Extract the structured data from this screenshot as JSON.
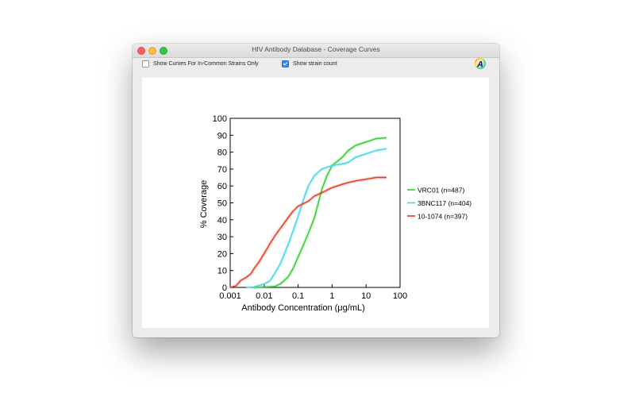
{
  "window": {
    "title": "HIV Antibody Database - Coverage Curves"
  },
  "toolbar": {
    "common_strains_label": "Show Curves For In-Common Strains Only",
    "common_strains_checked": false,
    "strain_count_label": "Show strain count",
    "strain_count_checked": true,
    "logo_text": "A"
  },
  "chart_data": {
    "type": "line",
    "xlabel": "Antibody Concentration (μg/mL)",
    "ylabel": "% Coverage",
    "xscale": "log",
    "xlim": [
      0.001,
      100
    ],
    "ylim": [
      0,
      100
    ],
    "x_ticks": [
      "0.001",
      "0.01",
      "0.1",
      "1",
      "10",
      "100"
    ],
    "y_ticks": [
      "0",
      "10",
      "20",
      "30",
      "40",
      "50",
      "60",
      "70",
      "80",
      "90",
      "100"
    ],
    "grid": false,
    "legend_position": "right",
    "series": [
      {
        "name": "VRC01 (n=487)",
        "color": "#2ecc2e",
        "points": [
          [
            0.005,
            0
          ],
          [
            0.02,
            0.5
          ],
          [
            0.03,
            2
          ],
          [
            0.05,
            6
          ],
          [
            0.07,
            11
          ],
          [
            0.1,
            18
          ],
          [
            0.15,
            26
          ],
          [
            0.2,
            32
          ],
          [
            0.3,
            41
          ],
          [
            0.5,
            58
          ],
          [
            0.7,
            66
          ],
          [
            1,
            72
          ],
          [
            2,
            77
          ],
          [
            3,
            81
          ],
          [
            5,
            84
          ],
          [
            10,
            86
          ],
          [
            20,
            88
          ],
          [
            40,
            88.5
          ]
        ]
      },
      {
        "name": "3BNC117 (n=404)",
        "color": "#3fd6e6",
        "points": [
          [
            0.003,
            0
          ],
          [
            0.005,
            0.3
          ],
          [
            0.01,
            2
          ],
          [
            0.015,
            4
          ],
          [
            0.02,
            8
          ],
          [
            0.03,
            14
          ],
          [
            0.05,
            25
          ],
          [
            0.07,
            33
          ],
          [
            0.1,
            42
          ],
          [
            0.15,
            53
          ],
          [
            0.2,
            60
          ],
          [
            0.3,
            66
          ],
          [
            0.5,
            70
          ],
          [
            0.7,
            71
          ],
          [
            1,
            72
          ],
          [
            2,
            73
          ],
          [
            3,
            74
          ],
          [
            5,
            77
          ],
          [
            10,
            79
          ],
          [
            20,
            81
          ],
          [
            40,
            82
          ]
        ]
      },
      {
        "name": "10-1074 (n=397)",
        "color": "#e8361e",
        "points": [
          [
            0.001,
            0
          ],
          [
            0.0015,
            1
          ],
          [
            0.002,
            4
          ],
          [
            0.003,
            6
          ],
          [
            0.004,
            8
          ],
          [
            0.005,
            11
          ],
          [
            0.007,
            15
          ],
          [
            0.01,
            20
          ],
          [
            0.015,
            26
          ],
          [
            0.02,
            30
          ],
          [
            0.03,
            35
          ],
          [
            0.05,
            41
          ],
          [
            0.07,
            45
          ],
          [
            0.1,
            48
          ],
          [
            0.2,
            51
          ],
          [
            0.3,
            54
          ],
          [
            0.5,
            56
          ],
          [
            1,
            59
          ],
          [
            2,
            61
          ],
          [
            3,
            62
          ],
          [
            5,
            63
          ],
          [
            10,
            64
          ],
          [
            20,
            65
          ],
          [
            40,
            65
          ]
        ]
      }
    ]
  }
}
